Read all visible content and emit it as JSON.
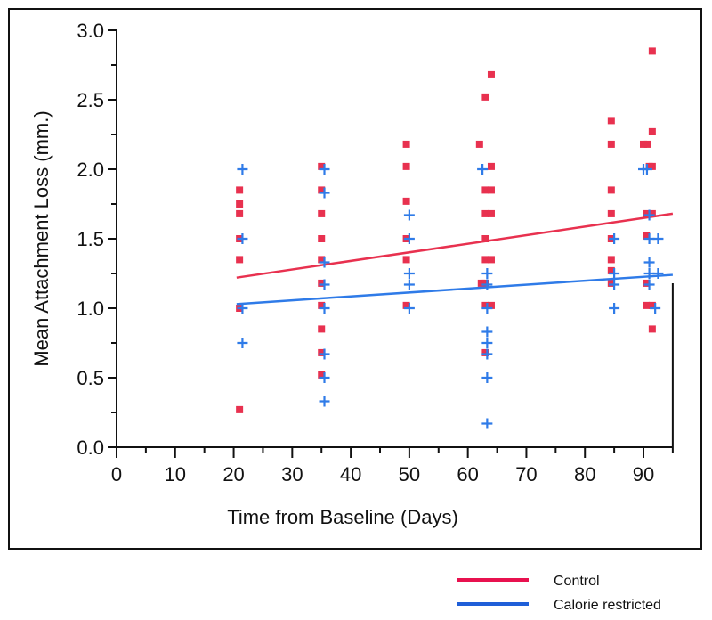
{
  "chart_data": {
    "type": "scatter",
    "title": "",
    "xlabel": "Time from Baseline (Days)",
    "ylabel": "Mean Attachment Loss (mm.)",
    "xlim": [
      0,
      95
    ],
    "ylim": [
      0,
      3.0
    ],
    "xticks": [
      "0",
      "10",
      "20",
      "30",
      "40",
      "50",
      "60",
      "70",
      "80",
      "90"
    ],
    "yticks": [
      "0.0",
      "0.5",
      "1.0",
      "1.5",
      "2.0",
      "2.5",
      "3.0"
    ],
    "grid": false,
    "legend_position": "bottom-right",
    "series": [
      {
        "name": "Control",
        "color": "#e8314f",
        "marker": "square",
        "points": [
          [
            21,
            1.85
          ],
          [
            21,
            1.75
          ],
          [
            21,
            1.68
          ],
          [
            21,
            1.5
          ],
          [
            21,
            1.35
          ],
          [
            21,
            1.0
          ],
          [
            21,
            0.27
          ],
          [
            35,
            2.02
          ],
          [
            35,
            1.85
          ],
          [
            35,
            1.68
          ],
          [
            35,
            1.5
          ],
          [
            35,
            1.35
          ],
          [
            35,
            1.18
          ],
          [
            35,
            1.02
          ],
          [
            35,
            0.85
          ],
          [
            35,
            0.68
          ],
          [
            35,
            0.52
          ],
          [
            49.5,
            2.18
          ],
          [
            49.5,
            2.02
          ],
          [
            49.5,
            1.77
          ],
          [
            49.5,
            1.5
          ],
          [
            49.5,
            1.35
          ],
          [
            49.5,
            1.02
          ],
          [
            64,
            2.68
          ],
          [
            63,
            2.52
          ],
          [
            62,
            2.18
          ],
          [
            64,
            2.02
          ],
          [
            63,
            1.85
          ],
          [
            64,
            1.85
          ],
          [
            63,
            1.68
          ],
          [
            64,
            1.68
          ],
          [
            63,
            1.5
          ],
          [
            63,
            1.35
          ],
          [
            64,
            1.35
          ],
          [
            62.3,
            1.18
          ],
          [
            63,
            1.18
          ],
          [
            63,
            1.02
          ],
          [
            64,
            1.02
          ],
          [
            63,
            0.68
          ],
          [
            84.5,
            2.35
          ],
          [
            84.5,
            2.18
          ],
          [
            84.5,
            1.85
          ],
          [
            84.5,
            1.68
          ],
          [
            84.5,
            1.5
          ],
          [
            84.5,
            1.35
          ],
          [
            84.5,
            1.27
          ],
          [
            84.5,
            1.18
          ],
          [
            91.5,
            2.85
          ],
          [
            91.5,
            2.27
          ],
          [
            90,
            2.18
          ],
          [
            90.7,
            2.18
          ],
          [
            91,
            2.02
          ],
          [
            91.5,
            2.02
          ],
          [
            90.5,
            1.68
          ],
          [
            91.5,
            1.68
          ],
          [
            90.5,
            1.52
          ],
          [
            90.5,
            1.18
          ],
          [
            90.5,
            1.02
          ],
          [
            91.5,
            1.02
          ],
          [
            91.5,
            0.85
          ]
        ],
        "fit_line": [
          [
            20.5,
            1.22
          ],
          [
            95,
            1.68
          ]
        ]
      },
      {
        "name": "Calorie restricted",
        "color": "#2f7be8",
        "marker": "plus",
        "points": [
          [
            21.5,
            2.0
          ],
          [
            21.5,
            1.5
          ],
          [
            21.5,
            1.0
          ],
          [
            21.5,
            0.75
          ],
          [
            35.5,
            2.0
          ],
          [
            35.5,
            1.83
          ],
          [
            35.5,
            1.33
          ],
          [
            35.5,
            1.17
          ],
          [
            35.5,
            1.0
          ],
          [
            35.5,
            0.67
          ],
          [
            35.5,
            0.5
          ],
          [
            35.5,
            0.33
          ],
          [
            50,
            1.67
          ],
          [
            50,
            1.5
          ],
          [
            50,
            1.25
          ],
          [
            50,
            1.17
          ],
          [
            50,
            1.0
          ],
          [
            62.5,
            2.0
          ],
          [
            63.3,
            1.25
          ],
          [
            63.3,
            1.17
          ],
          [
            63.3,
            1.0
          ],
          [
            63.3,
            0.83
          ],
          [
            63.3,
            0.75
          ],
          [
            63.3,
            0.67
          ],
          [
            63.3,
            0.5
          ],
          [
            63.3,
            0.17
          ],
          [
            85,
            1.5
          ],
          [
            85,
            1.25
          ],
          [
            85,
            1.17
          ],
          [
            85,
            1.0
          ],
          [
            90,
            2.0
          ],
          [
            90.6,
            2.0
          ],
          [
            91,
            1.67
          ],
          [
            91,
            1.5
          ],
          [
            92.5,
            1.5
          ],
          [
            91,
            1.33
          ],
          [
            91,
            1.25
          ],
          [
            92.5,
            1.25
          ],
          [
            91,
            1.17
          ],
          [
            92,
            1.0
          ]
        ],
        "fit_line": [
          [
            20.5,
            1.03
          ],
          [
            95,
            1.24
          ]
        ]
      }
    ]
  }
}
